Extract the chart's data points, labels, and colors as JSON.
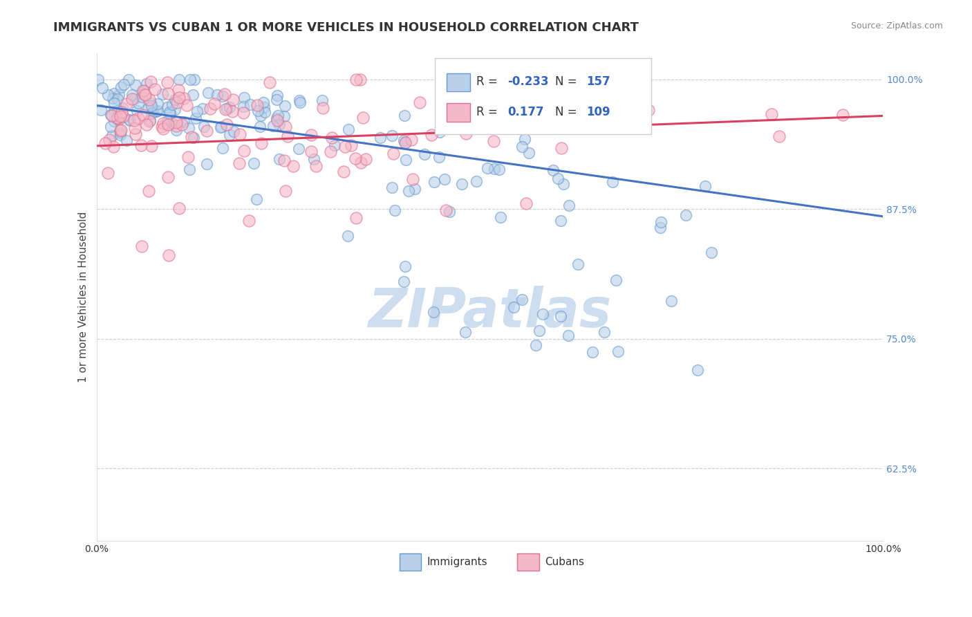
{
  "title": "IMMIGRANTS VS CUBAN 1 OR MORE VEHICLES IN HOUSEHOLD CORRELATION CHART",
  "source_text": "Source: ZipAtlas.com",
  "ylabel": "1 or more Vehicles in Household",
  "xlim": [
    0.0,
    1.0
  ],
  "ylim": [
    0.555,
    1.025
  ],
  "yticks": [
    0.625,
    0.75,
    0.875,
    1.0
  ],
  "ytick_labels": [
    "62.5%",
    "75.0%",
    "87.5%",
    "100.0%"
  ],
  "immigrants_color_face": "#b8d0ea",
  "immigrants_color_edge": "#6699cc",
  "cubans_color_face": "#f5b8c8",
  "cubans_color_edge": "#e07090",
  "trend_imm_color": "#4472c4",
  "trend_cub_color": "#d94060",
  "watermark": "ZIPatlas",
  "watermark_color": "#ccddf0",
  "imm_trend_x0": 0.0,
  "imm_trend_y0": 0.975,
  "imm_trend_x1": 1.0,
  "imm_trend_y1": 0.868,
  "cub_trend_x0": 0.0,
  "cub_trend_y0": 0.936,
  "cub_trend_x1": 1.0,
  "cub_trend_y1": 0.965,
  "legend_R_imm": "-0.233",
  "legend_N_imm": "157",
  "legend_R_cub": "0.177",
  "legend_N_cub": "109",
  "title_fontsize": 13,
  "axis_label_fontsize": 11,
  "tick_fontsize": 10,
  "source_fontsize": 9
}
